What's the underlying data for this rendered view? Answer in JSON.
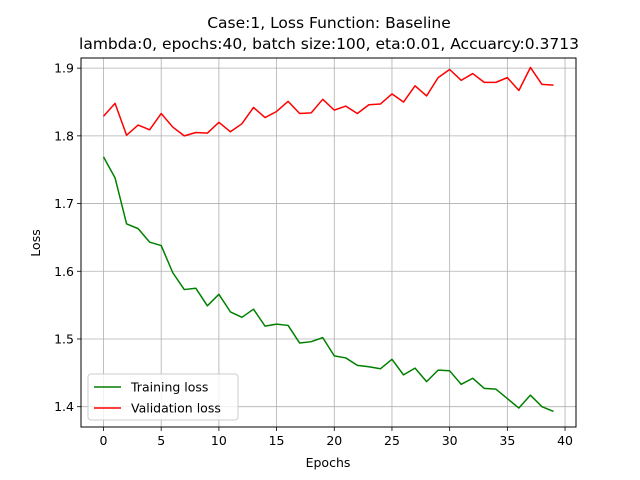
{
  "chart_data": {
    "type": "line",
    "title": "Case:1, Loss Function: Baseline",
    "subtitle": "lambda:0, epochs:40, batch size:100, eta:0.01, Accuarcy:0.3713",
    "xlabel": "Epochs",
    "ylabel": "Loss",
    "xlim": [
      -1.95,
      40.95
    ],
    "ylim": [
      1.37,
      1.915
    ],
    "xticks": [
      0,
      5,
      10,
      15,
      20,
      25,
      30,
      35,
      40
    ],
    "yticks": [
      1.4,
      1.5,
      1.6,
      1.7,
      1.8,
      1.9
    ],
    "xtick_labels": [
      "0",
      "5",
      "10",
      "15",
      "20",
      "25",
      "30",
      "35",
      "40"
    ],
    "ytick_labels": [
      "1.4",
      "1.5",
      "1.6",
      "1.7",
      "1.8",
      "1.9"
    ],
    "grid": true,
    "legend_position": "lower-left",
    "x": [
      0,
      1,
      2,
      3,
      4,
      5,
      6,
      7,
      8,
      9,
      10,
      11,
      12,
      13,
      14,
      15,
      16,
      17,
      18,
      19,
      20,
      21,
      22,
      23,
      24,
      25,
      26,
      27,
      28,
      29,
      30,
      31,
      32,
      33,
      34,
      35,
      36,
      37,
      38,
      39
    ],
    "series": [
      {
        "name": "Training loss",
        "color": "#008000",
        "values": [
          1.769,
          1.738,
          1.67,
          1.663,
          1.643,
          1.638,
          1.598,
          1.573,
          1.575,
          1.549,
          1.566,
          1.54,
          1.532,
          1.544,
          1.519,
          1.522,
          1.52,
          1.494,
          1.496,
          1.502,
          1.475,
          1.472,
          1.461,
          1.459,
          1.456,
          1.47,
          1.447,
          1.457,
          1.437,
          1.454,
          1.453,
          1.433,
          1.442,
          1.427,
          1.426,
          1.412,
          1.398,
          1.417,
          1.4,
          1.393
        ]
      },
      {
        "name": "Validation loss",
        "color": "#ff0000",
        "values": [
          1.829,
          1.848,
          1.801,
          1.816,
          1.809,
          1.833,
          1.813,
          1.8,
          1.805,
          1.804,
          1.82,
          1.806,
          1.818,
          1.842,
          1.827,
          1.836,
          1.851,
          1.833,
          1.834,
          1.854,
          1.838,
          1.844,
          1.833,
          1.846,
          1.847,
          1.862,
          1.85,
          1.874,
          1.859,
          1.886,
          1.898,
          1.882,
          1.892,
          1.879,
          1.879,
          1.886,
          1.867,
          1.901,
          1.876,
          1.875
        ]
      }
    ]
  }
}
